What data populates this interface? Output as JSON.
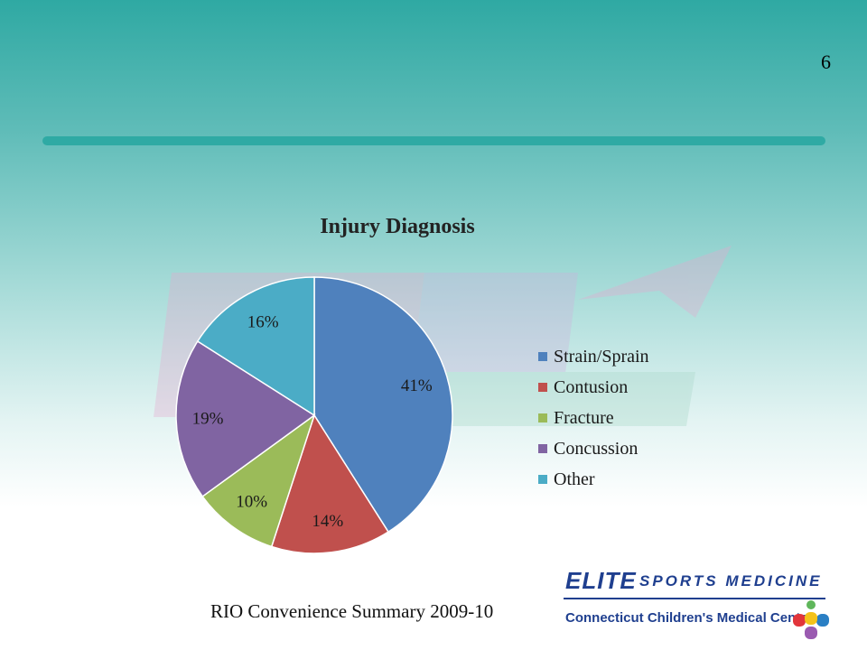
{
  "slide": {
    "number": "6",
    "footer": "RIO Convenience Summary 2009-10"
  },
  "logos": {
    "elite": "ELITE",
    "sports_medicine": "SPORTS MEDICINE",
    "ccmc": "Connecticut Children's Medical Center"
  },
  "chart_data": {
    "type": "pie",
    "title": "Injury Diagnosis",
    "categories": [
      "Strain/Sprain",
      "Contusion",
      "Fracture",
      "Concussion",
      "Other"
    ],
    "values": [
      41,
      14,
      10,
      19,
      16
    ],
    "labels": [
      "41%",
      "14%",
      "10%",
      "19%",
      "16%"
    ],
    "colors": [
      "#4f81bd",
      "#c0504d",
      "#9bbb59",
      "#8064a2",
      "#4bacc6"
    ],
    "legend_position": "right",
    "start_angle": "12 o'clock",
    "direction": "clockwise"
  }
}
